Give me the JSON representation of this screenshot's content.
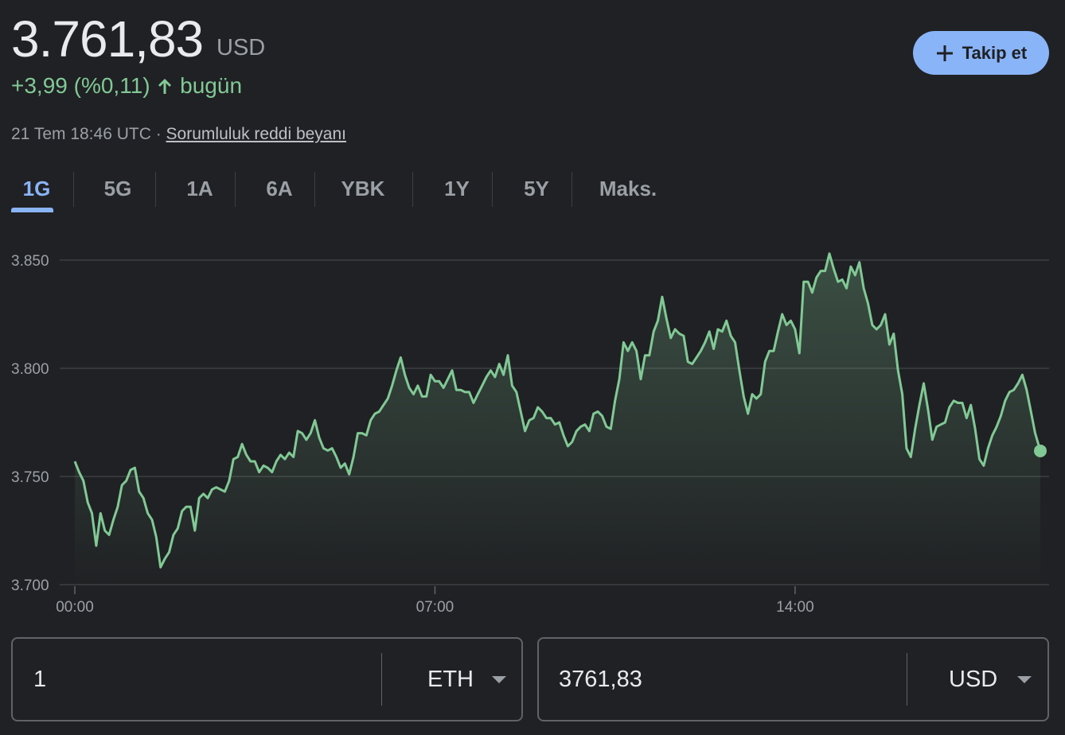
{
  "header": {
    "price": "3.761,83",
    "currency": "USD",
    "change": "+3,99 (%0,11)",
    "period": "bugün",
    "timestamp": "21 Tem 18:46 UTC ·",
    "disclaimer": "Sorumluluk reddi beyanı",
    "follow": "Takip et"
  },
  "tabs": [
    "1G",
    "5G",
    "1A",
    "6A",
    "YBK",
    "1Y",
    "5Y",
    "Maks."
  ],
  "chart_data": {
    "type": "line",
    "x": [
      0,
      5,
      10,
      15,
      20,
      25,
      30,
      35,
      40,
      45,
      50,
      55,
      60,
      65,
      70,
      75,
      80,
      85,
      90,
      95,
      100,
      105,
      110,
      115,
      120,
      125,
      130,
      135,
      140,
      145,
      150,
      155,
      160,
      165,
      170,
      175,
      180,
      185,
      190,
      195,
      200,
      205,
      210,
      215,
      220,
      225,
      230,
      235,
      240,
      245,
      250,
      255,
      260,
      265,
      270,
      275,
      280,
      285,
      290,
      295,
      300,
      305,
      310,
      315,
      320,
      325,
      330,
      335,
      340,
      345,
      350,
      355,
      360,
      365,
      370,
      375,
      380,
      385,
      390,
      395,
      400,
      405,
      410,
      415,
      420,
      425,
      430,
      435,
      440,
      445,
      450,
      455,
      460,
      465,
      470,
      475,
      480,
      485,
      490,
      495,
      500,
      505,
      510,
      515,
      520,
      525,
      530,
      535,
      540,
      545,
      550,
      555,
      560,
      565,
      570,
      575,
      580,
      585,
      590,
      595,
      600,
      605,
      610,
      615,
      620,
      625,
      630,
      635,
      640,
      645,
      650,
      655,
      660,
      665,
      670,
      675,
      680,
      685,
      690,
      695,
      700,
      705,
      710,
      715,
      720,
      725,
      730,
      735,
      740,
      745,
      750,
      755,
      760,
      765,
      770,
      775,
      780,
      785,
      790,
      795,
      800,
      805,
      810,
      815,
      820,
      825,
      830,
      835,
      840,
      845,
      850,
      855,
      860,
      865,
      870,
      875,
      880,
      885,
      890,
      895,
      900,
      905,
      910,
      915,
      920,
      925,
      930,
      935,
      940,
      945,
      950,
      955,
      960,
      965,
      970,
      975,
      980,
      985,
      990,
      995,
      1000,
      1005,
      1010,
      1015,
      1020,
      1025,
      1030,
      1035,
      1040,
      1045,
      1050,
      1055,
      1060,
      1065,
      1070,
      1075,
      1080,
      1085,
      1090,
      1095,
      1100,
      1105,
      1110,
      1115,
      1120,
      1126
    ],
    "series": [
      {
        "color": "#81c995",
        "values": [
          3757,
          3752,
          3748,
          3738,
          3733,
          3718,
          3733,
          3725,
          3723,
          3730,
          3736,
          3746,
          3748,
          3753,
          3754,
          3743,
          3740,
          3733,
          3730,
          3722,
          3708,
          3712,
          3715,
          3723,
          3726,
          3734,
          3736,
          3736,
          3725,
          3740,
          3742,
          3740,
          3744,
          3745,
          3744,
          3743,
          3748,
          3758,
          3759,
          3765,
          3760,
          3757,
          3757,
          3752,
          3755,
          3754,
          3752,
          3757,
          3760,
          3758,
          3761,
          3759,
          3771,
          3770,
          3767,
          3770,
          3776,
          3768,
          3763,
          3762,
          3763,
          3759,
          3754,
          3756,
          3751,
          3759,
          3770,
          3770,
          3769,
          3776,
          3779,
          3780,
          3783,
          3786,
          3792,
          3799,
          3805,
          3797,
          3791,
          3788,
          3792,
          3787,
          3787,
          3797,
          3794,
          3794,
          3791,
          3795,
          3799,
          3790,
          3790,
          3789,
          3789,
          3784,
          3788,
          3792,
          3796,
          3799,
          3796,
          3802,
          3797,
          3806,
          3792,
          3789,
          3780,
          3771,
          3776,
          3777,
          3782,
          3780,
          3777,
          3777,
          3774,
          3775,
          3769,
          3764,
          3766,
          3771,
          3773,
          3774,
          3771,
          3779,
          3780,
          3778,
          3773,
          3772,
          3785,
          3795,
          3812,
          3808,
          3812,
          3808,
          3795,
          3806,
          3806,
          3817,
          3822,
          3833,
          3823,
          3814,
          3818,
          3816,
          3815,
          3803,
          3802,
          3805,
          3808,
          3812,
          3817,
          3809,
          3818,
          3817,
          3822,
          3815,
          3812,
          3799,
          3787,
          3779,
          3788,
          3786,
          3788,
          3803,
          3808,
          3808,
          3817,
          3825,
          3820,
          3822,
          3818,
          3807,
          3840,
          3840,
          3835,
          3842,
          3845,
          3845,
          3853,
          3846,
          3840,
          3841,
          3837,
          3847,
          3843,
          3849,
          3837,
          3830,
          3820,
          3818,
          3820,
          3825,
          3811,
          3816,
          3799,
          3788,
          3763,
          3759,
          3772,
          3783,
          3793,
          3781,
          3767,
          3773,
          3774,
          3775,
          3782,
          3785,
          3784,
          3784,
          3777,
          3783,
          3772,
          3758,
          3755,
          3763,
          3769,
          3773,
          3778,
          3785,
          3789,
          3790,
          3793,
          3797,
          3790,
          3780,
          3770,
          3761.83
        ]
      }
    ],
    "xlim": [
      0,
      1126
    ],
    "ylim": [
      3700,
      3850
    ],
    "xticks": [
      {
        "value": 0,
        "label": "00:00"
      },
      {
        "value": 420,
        "label": "07:00"
      },
      {
        "value": 840,
        "label": "14:00"
      }
    ],
    "yticks": [
      {
        "value": 3700,
        "label": "3.700"
      },
      {
        "value": 3750,
        "label": "3.750"
      },
      {
        "value": 3800,
        "label": "3.800"
      },
      {
        "value": 3850,
        "label": "3.850"
      }
    ],
    "grid": true
  },
  "converter": {
    "from_amount": "1",
    "from_unit": "ETH",
    "to_amount": "3761,83",
    "to_unit": "USD"
  }
}
